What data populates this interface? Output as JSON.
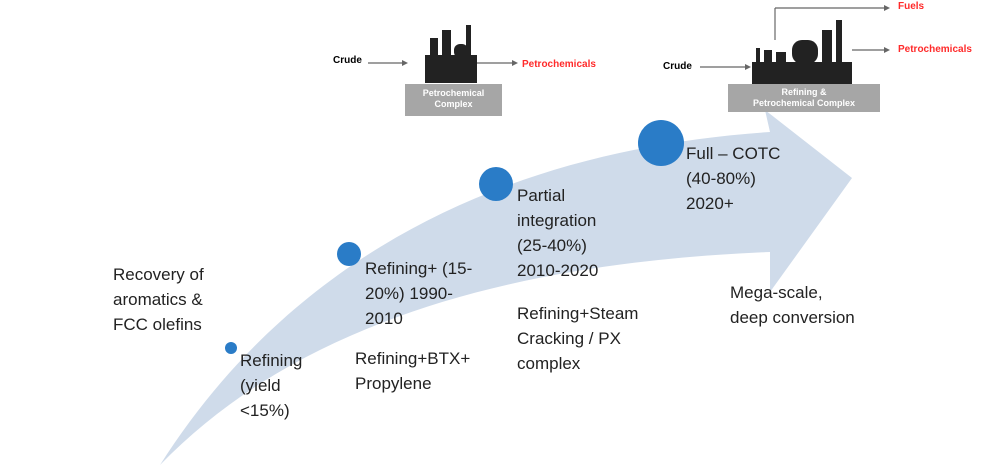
{
  "schematics": {
    "petrochemical": {
      "input": "Crude",
      "outputs": [
        "Petrochemicals"
      ],
      "label_lines": [
        "Petrochemical",
        "Complex"
      ]
    },
    "integrated": {
      "input": "Crude",
      "outputs": [
        "Fuels",
        "Petrochemicals"
      ],
      "label_lines": [
        "Refining &",
        "Petrochemical Complex"
      ]
    }
  },
  "stages": [
    {
      "label_lines": [
        "Refining",
        "(yield",
        "<15%)"
      ],
      "description_lines": [
        "Recovery of",
        "aromatics &",
        "FCC olefins"
      ]
    },
    {
      "label_lines": [
        "Refining+ (15-",
        "20%) 1990-",
        "2010"
      ],
      "description_lines": [
        "Refining+BTX+",
        "Propylene"
      ]
    },
    {
      "label_lines": [
        "Partial",
        "integration",
        "(25-40%)",
        "2010-2020"
      ],
      "description_lines": [
        "Refining+Steam",
        "Cracking / PX",
        "complex"
      ]
    },
    {
      "label_lines": [
        "Full – COTC",
        "(40-80%)",
        "2020+"
      ],
      "description_lines": [
        "Mega-scale,",
        "deep conversion"
      ]
    }
  ]
}
